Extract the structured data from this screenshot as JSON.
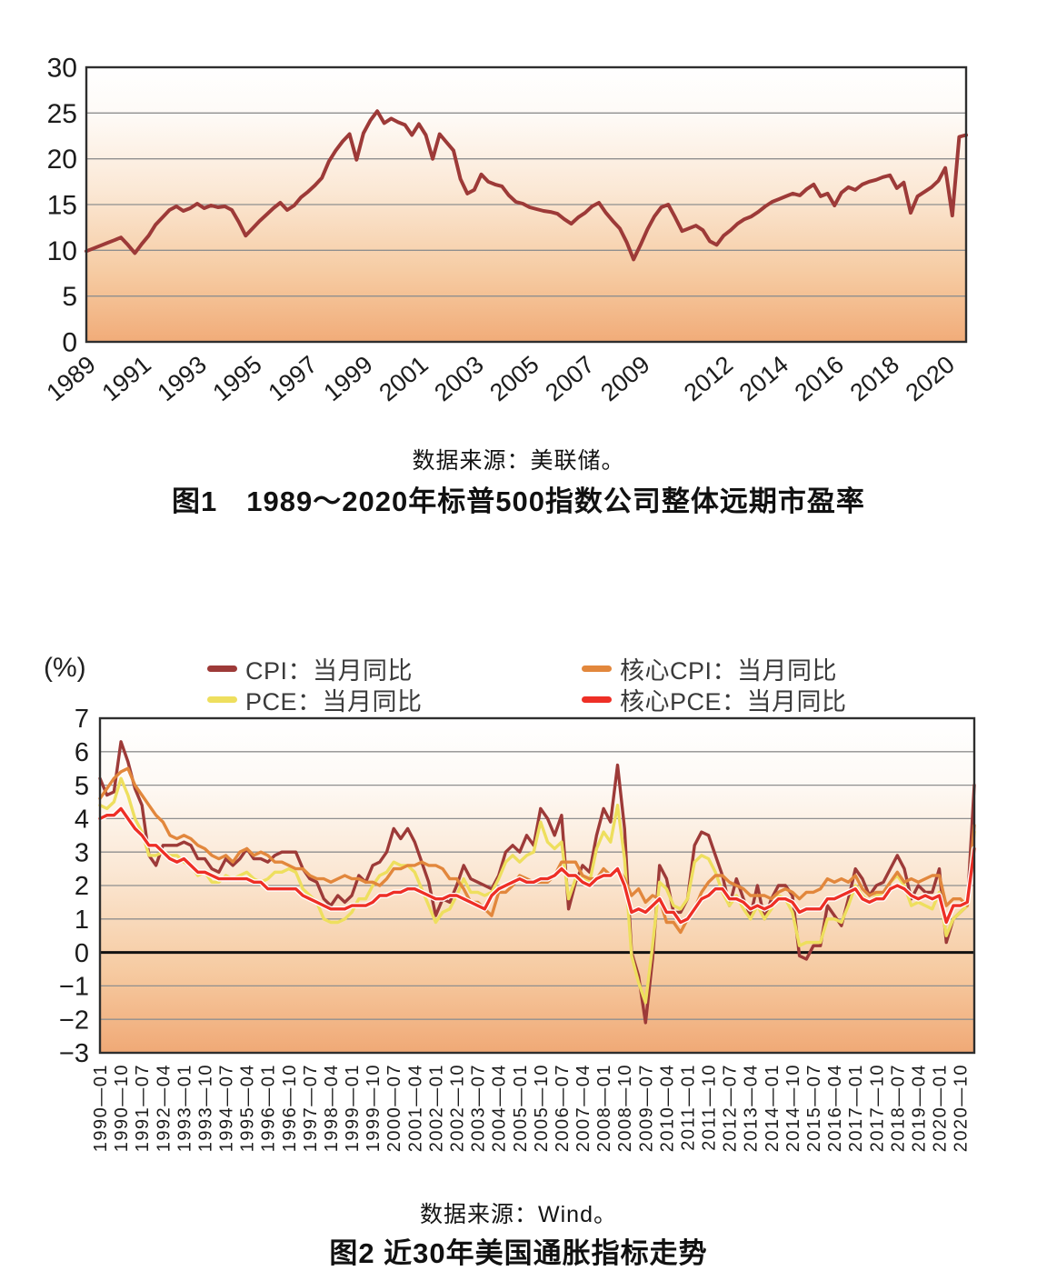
{
  "figure1": {
    "source": "数据来源：美联储。",
    "title": "图1　1989～2020年标普500指数公司整体远期市盈率"
  },
  "figure2": {
    "unit_label": "(%)",
    "source": "数据来源：Wind。",
    "title": "图2 近30年美国通胀指标走势",
    "legend": [
      {
        "label": "CPI：当月同比",
        "color": "#9d3a38"
      },
      {
        "label": "PCE：当月同比",
        "color": "#eedf5e"
      },
      {
        "label": "核心CPI：当月同比",
        "color": "#e2873c"
      },
      {
        "label": "核心PCE：当月同比",
        "color": "#ee2f26"
      }
    ]
  },
  "chart_data": [
    {
      "type": "line",
      "title": "图1 1989～2020年标普500指数公司整体远期市盈率",
      "source": "美联储",
      "xlabel": "",
      "ylabel": "",
      "ylim": [
        0,
        30
      ],
      "yticks": [
        0,
        5,
        10,
        15,
        20,
        25,
        30
      ],
      "grid": true,
      "legend_position": "none",
      "x_start_year": 1989,
      "x_points_per_year": 4,
      "xtick_years": [
        1989,
        1991,
        1993,
        1995,
        1997,
        1999,
        2001,
        2003,
        2005,
        2007,
        2009,
        2012,
        2014,
        2016,
        2018,
        2020
      ],
      "series": [
        {
          "name": "标普500指数公司整体远期市盈率",
          "color": "#9d3a38",
          "values": [
            9.9,
            10.2,
            10.5,
            10.8,
            11.1,
            11.4,
            10.6,
            9.7,
            10.7,
            11.6,
            12.8,
            13.6,
            14.4,
            14.8,
            14.3,
            14.6,
            15.1,
            14.6,
            14.9,
            14.7,
            14.8,
            14.4,
            13.1,
            11.6,
            12.4,
            13.2,
            13.9,
            14.6,
            15.2,
            14.4,
            14.9,
            15.8,
            16.4,
            17.1,
            17.9,
            19.7,
            20.9,
            21.9,
            22.7,
            19.9,
            22.8,
            24.2,
            25.2,
            23.9,
            24.4,
            24.0,
            23.7,
            22.6,
            23.8,
            22.6,
            20.0,
            22.7,
            21.8,
            20.9,
            17.8,
            16.2,
            16.6,
            18.3,
            17.5,
            17.2,
            17.0,
            16.0,
            15.3,
            15.1,
            14.7,
            14.5,
            14.3,
            14.2,
            14.0,
            13.4,
            12.9,
            13.6,
            14.1,
            14.8,
            15.2,
            14.1,
            13.2,
            12.4,
            10.9,
            9.0,
            10.6,
            12.3,
            13.7,
            14.7,
            15.0,
            13.6,
            12.1,
            12.4,
            12.7,
            12.2,
            11.0,
            10.6,
            11.6,
            12.2,
            12.9,
            13.4,
            13.7,
            14.2,
            14.8,
            15.3,
            15.6,
            15.9,
            16.2,
            16.0,
            16.7,
            17.2,
            15.9,
            16.2,
            14.9,
            16.3,
            16.9,
            16.6,
            17.2,
            17.5,
            17.7,
            18.0,
            18.2,
            16.8,
            17.4,
            14.1,
            15.9,
            16.4,
            16.9,
            17.6,
            19.0,
            13.8,
            22.4,
            22.6
          ]
        }
      ]
    },
    {
      "type": "line",
      "title": "图2 近30年美国通胀指标走势",
      "source": "Wind",
      "xlabel": "",
      "ylabel": "(%)",
      "ylim": [
        -3,
        7
      ],
      "yticks": [
        7,
        6,
        5,
        4,
        3,
        2,
        1,
        0,
        -1,
        -2,
        -3
      ],
      "grid": true,
      "legend_position": "top",
      "x_start": "1990-01",
      "x_end": "2021-04",
      "x_points_interval_months": 3,
      "xtick_labels": [
        "1990—01",
        "1990—10",
        "1991—07",
        "1992—04",
        "1993—01",
        "1993—10",
        "1994—07",
        "1995—04",
        "1996—01",
        "1996—10",
        "1997—07",
        "1998—04",
        "1999—01",
        "1999—10",
        "2000—07",
        "2001—04",
        "2002—01",
        "2002—10",
        "2003—07",
        "2004—04",
        "2005—01",
        "2005—10",
        "2006—07",
        "2007—04",
        "2008—01",
        "2008—10",
        "2009—07",
        "2010—04",
        "2011—01",
        "2011—10",
        "2012—07",
        "2013—04",
        "2014—01",
        "2014—10",
        "2015—07",
        "2016—04",
        "2017—01",
        "2017—10",
        "2018—07",
        "2019—04",
        "2020—01",
        "2020—10"
      ],
      "series": [
        {
          "name": "CPI：当月同比",
          "color": "#9d3a38",
          "values": [
            5.2,
            4.7,
            4.8,
            6.3,
            5.7,
            4.9,
            4.4,
            2.9,
            2.6,
            3.2,
            3.2,
            3.2,
            3.3,
            3.2,
            2.8,
            2.8,
            2.5,
            2.4,
            2.8,
            2.6,
            2.8,
            3.1,
            2.8,
            2.8,
            2.7,
            2.9,
            3.0,
            3.0,
            3.0,
            2.5,
            2.2,
            2.1,
            1.6,
            1.4,
            1.7,
            1.5,
            1.7,
            2.3,
            2.1,
            2.6,
            2.7,
            3.0,
            3.7,
            3.4,
            3.7,
            3.3,
            2.7,
            2.1,
            1.1,
            1.6,
            1.5,
            2.0,
            2.6,
            2.2,
            2.1,
            2.0,
            1.9,
            2.3,
            3.0,
            3.2,
            3.0,
            3.5,
            3.2,
            4.3,
            4.0,
            3.5,
            4.1,
            1.3,
            2.1,
            2.6,
            2.4,
            3.5,
            4.3,
            3.9,
            5.6,
            3.7,
            0.0,
            -0.7,
            -2.1,
            -0.2,
            2.6,
            2.2,
            1.2,
            1.2,
            1.6,
            3.2,
            3.6,
            3.5,
            2.9,
            2.3,
            1.4,
            2.2,
            1.6,
            1.1,
            2.0,
            1.0,
            1.6,
            2.0,
            2.0,
            1.7,
            -0.1,
            -0.2,
            0.2,
            0.2,
            1.4,
            1.1,
            0.8,
            1.6,
            2.5,
            2.2,
            1.7,
            2.0,
            2.1,
            2.5,
            2.9,
            2.5,
            1.6,
            2.0,
            1.8,
            1.8,
            2.5,
            0.3,
            1.0,
            1.2,
            1.4,
            5.0
          ]
        },
        {
          "name": "PCE：当月同比",
          "color": "#eedf5e",
          "values": [
            4.4,
            4.3,
            4.5,
            5.2,
            4.7,
            4.0,
            3.6,
            2.9,
            2.9,
            3.0,
            2.9,
            2.9,
            2.7,
            2.6,
            2.3,
            2.4,
            2.1,
            2.1,
            2.3,
            2.2,
            2.3,
            2.4,
            2.2,
            2.1,
            2.2,
            2.4,
            2.4,
            2.5,
            2.4,
            1.9,
            1.7,
            1.5,
            1.0,
            0.9,
            0.9,
            1.0,
            1.2,
            1.6,
            1.6,
            2.0,
            2.3,
            2.4,
            2.7,
            2.6,
            2.6,
            2.4,
            1.9,
            1.4,
            0.9,
            1.2,
            1.3,
            1.7,
            2.2,
            1.8,
            1.8,
            1.7,
            1.8,
            2.2,
            2.7,
            2.9,
            2.7,
            2.9,
            3.0,
            3.9,
            3.3,
            3.1,
            3.3,
            1.6,
            2.2,
            2.3,
            2.1,
            3.1,
            3.6,
            3.3,
            4.4,
            2.8,
            -0.1,
            -0.9,
            -1.5,
            0.2,
            2.1,
            1.9,
            1.4,
            1.3,
            1.6,
            2.7,
            2.9,
            2.8,
            2.4,
            1.8,
            1.4,
            1.7,
            1.3,
            1.0,
            1.4,
            1.0,
            1.3,
            1.7,
            1.6,
            1.2,
            0.2,
            0.3,
            0.3,
            0.3,
            1.0,
            1.0,
            0.9,
            1.4,
            2.0,
            1.7,
            1.5,
            1.7,
            1.8,
            2.1,
            2.3,
            2.0,
            1.4,
            1.5,
            1.4,
            1.3,
            1.8,
            0.5,
            1.0,
            1.2,
            1.4,
            3.6
          ]
        },
        {
          "name": "核心CPI：当月同比",
          "color": "#e2873c",
          "values": [
            4.6,
            4.9,
            5.2,
            5.4,
            5.5,
            5.0,
            4.7,
            4.4,
            4.1,
            3.9,
            3.5,
            3.4,
            3.5,
            3.4,
            3.2,
            3.1,
            2.9,
            2.8,
            2.9,
            2.7,
            3.0,
            3.1,
            2.9,
            3.0,
            2.9,
            2.7,
            2.7,
            2.6,
            2.5,
            2.5,
            2.3,
            2.2,
            2.2,
            2.1,
            2.2,
            2.3,
            2.2,
            2.2,
            2.1,
            2.1,
            2.0,
            2.2,
            2.5,
            2.5,
            2.6,
            2.6,
            2.7,
            2.6,
            2.6,
            2.5,
            2.2,
            2.2,
            1.9,
            1.5,
            1.5,
            1.3,
            1.1,
            1.8,
            1.8,
            2.0,
            2.3,
            2.2,
            2.1,
            2.1,
            2.1,
            2.3,
            2.7,
            2.7,
            2.7,
            2.3,
            2.2,
            2.2,
            2.5,
            2.3,
            2.5,
            2.2,
            1.7,
            1.9,
            1.5,
            1.7,
            1.6,
            0.9,
            0.9,
            0.6,
            1.0,
            1.3,
            1.8,
            2.1,
            2.3,
            2.3,
            2.1,
            2.0,
            1.9,
            1.7,
            1.7,
            1.7,
            1.6,
            1.8,
            1.9,
            1.8,
            1.6,
            1.8,
            1.8,
            1.9,
            2.2,
            2.1,
            2.2,
            2.1,
            2.3,
            1.9,
            1.7,
            1.8,
            1.8,
            2.1,
            2.4,
            2.1,
            2.2,
            2.1,
            2.2,
            2.3,
            2.3,
            1.4,
            1.6,
            1.6,
            1.4,
            3.8
          ]
        },
        {
          "name": "核心PCE：当月同比",
          "color": "#ee2f26",
          "halo": "#ffffff",
          "values": [
            4.0,
            4.1,
            4.1,
            4.3,
            4.0,
            3.7,
            3.5,
            3.2,
            3.2,
            3.0,
            2.8,
            2.7,
            2.8,
            2.6,
            2.4,
            2.4,
            2.3,
            2.2,
            2.2,
            2.2,
            2.2,
            2.2,
            2.1,
            2.1,
            1.9,
            1.9,
            1.9,
            1.9,
            1.9,
            1.7,
            1.6,
            1.5,
            1.4,
            1.3,
            1.3,
            1.3,
            1.4,
            1.4,
            1.4,
            1.5,
            1.7,
            1.7,
            1.8,
            1.8,
            1.9,
            1.9,
            1.8,
            1.7,
            1.6,
            1.6,
            1.7,
            1.7,
            1.6,
            1.5,
            1.4,
            1.3,
            1.7,
            1.9,
            2.0,
            2.1,
            2.2,
            2.1,
            2.1,
            2.2,
            2.2,
            2.3,
            2.5,
            2.3,
            2.3,
            2.1,
            2.0,
            2.2,
            2.3,
            2.3,
            2.5,
            2.0,
            1.2,
            1.3,
            1.2,
            1.4,
            1.6,
            1.2,
            1.2,
            0.9,
            1.0,
            1.3,
            1.6,
            1.7,
            1.9,
            1.9,
            1.6,
            1.6,
            1.5,
            1.3,
            1.4,
            1.3,
            1.4,
            1.6,
            1.6,
            1.5,
            1.2,
            1.3,
            1.3,
            1.3,
            1.6,
            1.6,
            1.7,
            1.8,
            1.9,
            1.6,
            1.5,
            1.6,
            1.6,
            1.9,
            2.0,
            1.9,
            1.7,
            1.6,
            1.7,
            1.6,
            1.7,
            0.9,
            1.4,
            1.4,
            1.5,
            3.1
          ]
        }
      ]
    }
  ]
}
